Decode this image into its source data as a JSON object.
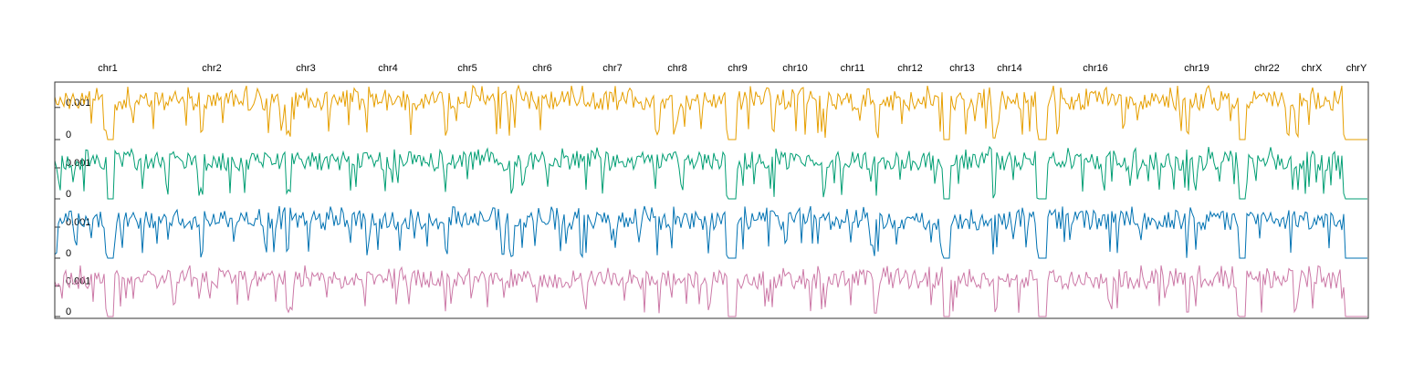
{
  "chart_data": {
    "type": "line",
    "title": "",
    "xlabel": "",
    "ylabel": "",
    "grid": false,
    "legend": "none",
    "chromosomes": [
      "chr1",
      "chr2",
      "chr3",
      "chr4",
      "chr5",
      "chr6",
      "chr7",
      "chr8",
      "chr9",
      "chr10",
      "chr11",
      "chr12",
      "chr13",
      "chr14",
      "chr16",
      "chr19",
      "chr22",
      "chrX",
      "chrY"
    ],
    "panel_y_ticks": [
      "0.001",
      "0"
    ],
    "series": [
      {
        "color": "#E69F00"
      },
      {
        "color": "#009E73"
      },
      {
        "color": "#0072B2"
      },
      {
        "color": "#CC79A7"
      }
    ]
  }
}
